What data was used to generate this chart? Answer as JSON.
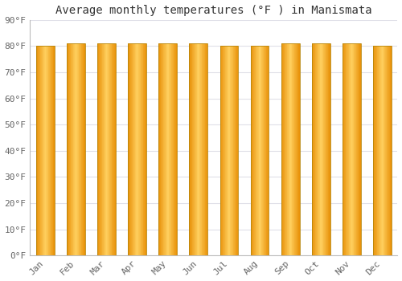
{
  "title": "Average monthly temperatures (°F ) in Manismata",
  "months": [
    "Jan",
    "Feb",
    "Mar",
    "Apr",
    "May",
    "Jun",
    "Jul",
    "Aug",
    "Sep",
    "Oct",
    "Nov",
    "Dec"
  ],
  "values": [
    80,
    81,
    81,
    81,
    81,
    81,
    80,
    80,
    81,
    81,
    81,
    80
  ],
  "ylim": [
    0,
    90
  ],
  "yticks": [
    0,
    10,
    20,
    30,
    40,
    50,
    60,
    70,
    80,
    90
  ],
  "ytick_labels": [
    "0°F",
    "10°F",
    "20°F",
    "30°F",
    "40°F",
    "50°F",
    "60°F",
    "70°F",
    "80°F",
    "90°F"
  ],
  "bar_color_center": "#FFD060",
  "bar_color_edge": "#E8920A",
  "bar_border_color": "#B8860B",
  "background_color": "#FFFFFF",
  "plot_bg_color": "#FFFFFF",
  "grid_color": "#E0E0E8",
  "title_fontsize": 10,
  "tick_fontsize": 8,
  "font_family": "monospace",
  "bar_width": 0.6,
  "n_gradient_steps": 30
}
